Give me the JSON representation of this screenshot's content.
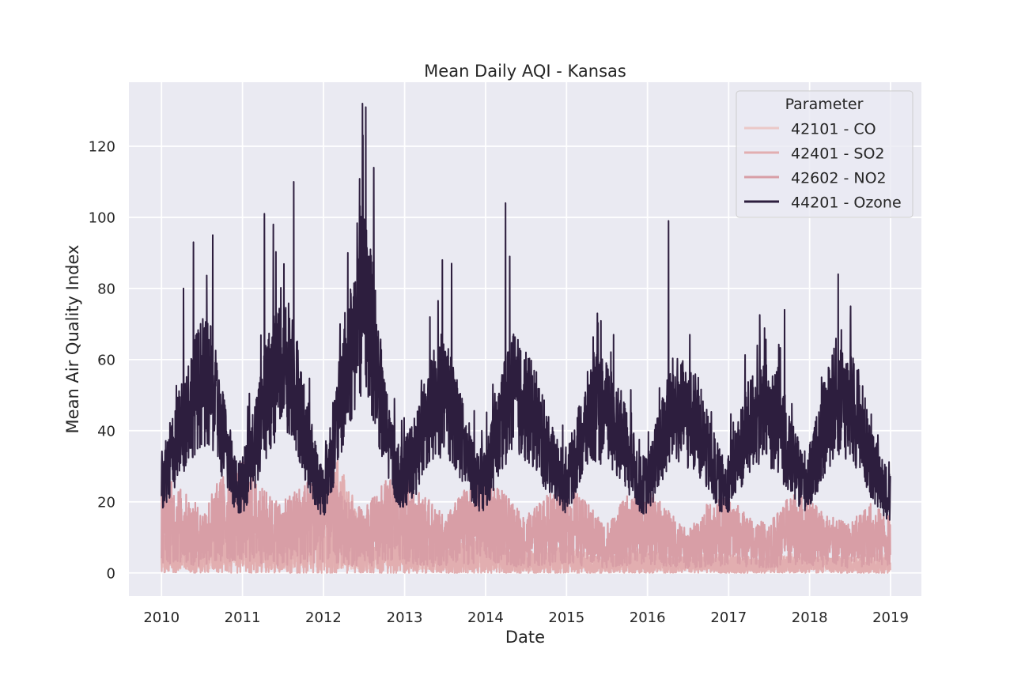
{
  "chart_data": {
    "type": "line",
    "title": "Mean Daily AQI - Kansas",
    "xlabel": "Date",
    "ylabel": "Mean Air Quality Index",
    "xlim": [
      "2009-08-07",
      "2019-05-20"
    ],
    "ylim": [
      -6.5,
      138
    ],
    "x_ticks": [
      "2010",
      "2011",
      "2012",
      "2013",
      "2014",
      "2015",
      "2016",
      "2017",
      "2018",
      "2019"
    ],
    "y_ticks": [
      0,
      20,
      40,
      60,
      80,
      100,
      120
    ],
    "grid": true,
    "legend": {
      "title": "Parameter",
      "placement": "top-right"
    },
    "series": [
      {
        "name": "42101 - CO",
        "color": "#ebc8c7",
        "points": [
          [
            "2010-01-01",
            3
          ],
          [
            "2010-04-01",
            4
          ],
          [
            "2010-07-01",
            3
          ],
          [
            "2010-10-01",
            5
          ],
          [
            "2011-01-01",
            7
          ],
          [
            "2011-04-01",
            5
          ],
          [
            "2011-07-01",
            4
          ],
          [
            "2011-10-01",
            6
          ],
          [
            "2012-01-01",
            6
          ],
          [
            "2012-04-01",
            4
          ],
          [
            "2012-07-01",
            3
          ],
          [
            "2012-10-01",
            5
          ],
          [
            "2013-01-01",
            5
          ],
          [
            "2013-04-01",
            3
          ],
          [
            "2013-07-01",
            3
          ],
          [
            "2013-10-01",
            4
          ],
          [
            "2014-01-01",
            4
          ],
          [
            "2014-04-01",
            3
          ],
          [
            "2014-07-01",
            2
          ],
          [
            "2014-10-01",
            4
          ],
          [
            "2015-01-01",
            4
          ],
          [
            "2015-04-01",
            3
          ],
          [
            "2015-07-01",
            2
          ],
          [
            "2015-10-01",
            3
          ],
          [
            "2016-01-01",
            3
          ],
          [
            "2016-04-01",
            2
          ],
          [
            "2016-07-01",
            2
          ],
          [
            "2016-10-01",
            3
          ],
          [
            "2017-01-01",
            3
          ],
          [
            "2017-04-01",
            2
          ],
          [
            "2017-07-01",
            2
          ],
          [
            "2017-10-01",
            3
          ],
          [
            "2018-01-01",
            3
          ],
          [
            "2018-04-01",
            2
          ],
          [
            "2018-07-01",
            2
          ],
          [
            "2018-10-01",
            3
          ],
          [
            "2018-12-31",
            3
          ]
        ]
      },
      {
        "name": "42401 - SO2",
        "color": "#e2aeb0",
        "points": [
          [
            "2010-01-01",
            5
          ],
          [
            "2010-04-01",
            6
          ],
          [
            "2010-07-01",
            5
          ],
          [
            "2010-10-01",
            7
          ],
          [
            "2011-01-01",
            8
          ],
          [
            "2011-04-01",
            6
          ],
          [
            "2011-07-01",
            6
          ],
          [
            "2011-10-01",
            7
          ],
          [
            "2012-01-01",
            9
          ],
          [
            "2012-03-01",
            14
          ],
          [
            "2012-07-01",
            6
          ],
          [
            "2012-10-01",
            6
          ],
          [
            "2013-01-01",
            6
          ],
          [
            "2013-04-01",
            4
          ],
          [
            "2013-07-01",
            3
          ],
          [
            "2013-10-01",
            4
          ],
          [
            "2014-01-01",
            5
          ],
          [
            "2014-04-01",
            3
          ],
          [
            "2014-07-01",
            3
          ],
          [
            "2014-10-01",
            3
          ],
          [
            "2015-01-01",
            4
          ],
          [
            "2015-04-01",
            2
          ],
          [
            "2015-07-01",
            2
          ],
          [
            "2015-10-01",
            3
          ],
          [
            "2016-01-01",
            3
          ],
          [
            "2016-04-01",
            2
          ],
          [
            "2016-07-01",
            2
          ],
          [
            "2016-10-01",
            2
          ],
          [
            "2017-01-01",
            2
          ],
          [
            "2017-04-01",
            2
          ],
          [
            "2017-07-01",
            2
          ],
          [
            "2017-10-01",
            2
          ],
          [
            "2018-01-01",
            2
          ],
          [
            "2018-04-01",
            2
          ],
          [
            "2018-07-01",
            2
          ],
          [
            "2018-10-01",
            2
          ],
          [
            "2018-12-31",
            2
          ]
        ]
      },
      {
        "name": "42602 - NO2",
        "color": "#d89ea6",
        "points": [
          [
            "2010-01-01",
            14
          ],
          [
            "2010-04-01",
            12
          ],
          [
            "2010-07-01",
            9
          ],
          [
            "2010-10-01",
            14
          ],
          [
            "2011-01-01",
            16
          ],
          [
            "2011-04-01",
            12
          ],
          [
            "2011-07-01",
            10
          ],
          [
            "2011-10-01",
            13
          ],
          [
            "2012-01-01",
            15
          ],
          [
            "2012-04-01",
            11
          ],
          [
            "2012-07-01",
            9
          ],
          [
            "2012-10-01",
            13
          ],
          [
            "2013-01-01",
            14
          ],
          [
            "2013-04-01",
            11
          ],
          [
            "2013-07-01",
            8
          ],
          [
            "2013-10-01",
            12
          ],
          [
            "2014-01-01",
            15
          ],
          [
            "2014-04-01",
            11
          ],
          [
            "2014-07-01",
            8
          ],
          [
            "2014-10-01",
            11
          ],
          [
            "2015-01-01",
            13
          ],
          [
            "2015-04-01",
            10
          ],
          [
            "2015-07-01",
            7
          ],
          [
            "2015-10-01",
            11
          ],
          [
            "2016-01-01",
            12
          ],
          [
            "2016-04-01",
            9
          ],
          [
            "2016-07-01",
            6
          ],
          [
            "2016-10-01",
            10
          ],
          [
            "2017-01-01",
            11
          ],
          [
            "2017-04-01",
            8
          ],
          [
            "2017-07-01",
            7
          ],
          [
            "2017-10-01",
            11
          ],
          [
            "2018-01-01",
            11
          ],
          [
            "2018-04-01",
            8
          ],
          [
            "2018-07-01",
            7
          ],
          [
            "2018-10-01",
            10
          ],
          [
            "2018-12-31",
            8
          ]
        ]
      },
      {
        "name": "44201 - Ozone",
        "color": "#2d1e3e",
        "points": [
          [
            "2010-01-01",
            26
          ],
          [
            "2010-03-01",
            33
          ],
          [
            "2010-05-01",
            45
          ],
          [
            "2010-07-01",
            52
          ],
          [
            "2010-08-15",
            50
          ],
          [
            "2010-10-01",
            38
          ],
          [
            "2010-12-01",
            25
          ],
          [
            "2011-01-01",
            24
          ],
          [
            "2011-03-01",
            35
          ],
          [
            "2011-05-01",
            50
          ],
          [
            "2011-07-01",
            58
          ],
          [
            "2011-08-15",
            55
          ],
          [
            "2011-10-01",
            40
          ],
          [
            "2011-12-01",
            26
          ],
          [
            "2012-01-01",
            22
          ],
          [
            "2012-03-01",
            40
          ],
          [
            "2012-05-01",
            60
          ],
          [
            "2012-07-01",
            75
          ],
          [
            "2012-08-15",
            62
          ],
          [
            "2012-10-01",
            40
          ],
          [
            "2012-12-01",
            27
          ],
          [
            "2013-01-01",
            27
          ],
          [
            "2013-03-01",
            33
          ],
          [
            "2013-05-01",
            45
          ],
          [
            "2013-07-01",
            47
          ],
          [
            "2013-08-15",
            43
          ],
          [
            "2013-10-01",
            33
          ],
          [
            "2013-12-01",
            25
          ],
          [
            "2014-01-01",
            26
          ],
          [
            "2014-03-01",
            38
          ],
          [
            "2014-05-01",
            50
          ],
          [
            "2014-07-01",
            45
          ],
          [
            "2014-08-15",
            42
          ],
          [
            "2014-10-01",
            33
          ],
          [
            "2014-12-01",
            26
          ],
          [
            "2015-01-01",
            24
          ],
          [
            "2015-03-01",
            35
          ],
          [
            "2015-05-01",
            45
          ],
          [
            "2015-07-01",
            43
          ],
          [
            "2015-08-15",
            40
          ],
          [
            "2015-10-01",
            33
          ],
          [
            "2015-12-01",
            24
          ],
          [
            "2016-01-01",
            24
          ],
          [
            "2016-03-01",
            35
          ],
          [
            "2016-05-01",
            45
          ],
          [
            "2016-07-01",
            42
          ],
          [
            "2016-08-15",
            40
          ],
          [
            "2016-10-01",
            32
          ],
          [
            "2016-12-01",
            24
          ],
          [
            "2017-01-01",
            25
          ],
          [
            "2017-03-01",
            35
          ],
          [
            "2017-05-01",
            43
          ],
          [
            "2017-07-01",
            43
          ],
          [
            "2017-08-15",
            40
          ],
          [
            "2017-10-01",
            32
          ],
          [
            "2017-12-01",
            25
          ],
          [
            "2018-01-01",
            26
          ],
          [
            "2018-03-01",
            38
          ],
          [
            "2018-05-01",
            48
          ],
          [
            "2018-07-01",
            45
          ],
          [
            "2018-08-15",
            42
          ],
          [
            "2018-10-01",
            30
          ],
          [
            "2018-12-31",
            20
          ]
        ],
        "peaks": [
          [
            "2010-04-10",
            80
          ],
          [
            "2010-05-25",
            93
          ],
          [
            "2010-08-20",
            95
          ],
          [
            "2011-04-10",
            101
          ],
          [
            "2011-05-20",
            98
          ],
          [
            "2011-08-20",
            110
          ],
          [
            "2012-04-20",
            90
          ],
          [
            "2012-06-25",
            132
          ],
          [
            "2012-07-10",
            131
          ],
          [
            "2012-08-15",
            114
          ],
          [
            "2013-06-20",
            88
          ],
          [
            "2013-08-01",
            87
          ],
          [
            "2014-04-01",
            104
          ],
          [
            "2014-04-20",
            89
          ],
          [
            "2015-05-20",
            73
          ],
          [
            "2015-08-01",
            67
          ],
          [
            "2016-04-05",
            99
          ],
          [
            "2016-07-10",
            67
          ],
          [
            "2017-05-10",
            64
          ],
          [
            "2017-09-10",
            74
          ],
          [
            "2018-05-10",
            84
          ],
          [
            "2018-07-05",
            75
          ]
        ]
      }
    ]
  }
}
